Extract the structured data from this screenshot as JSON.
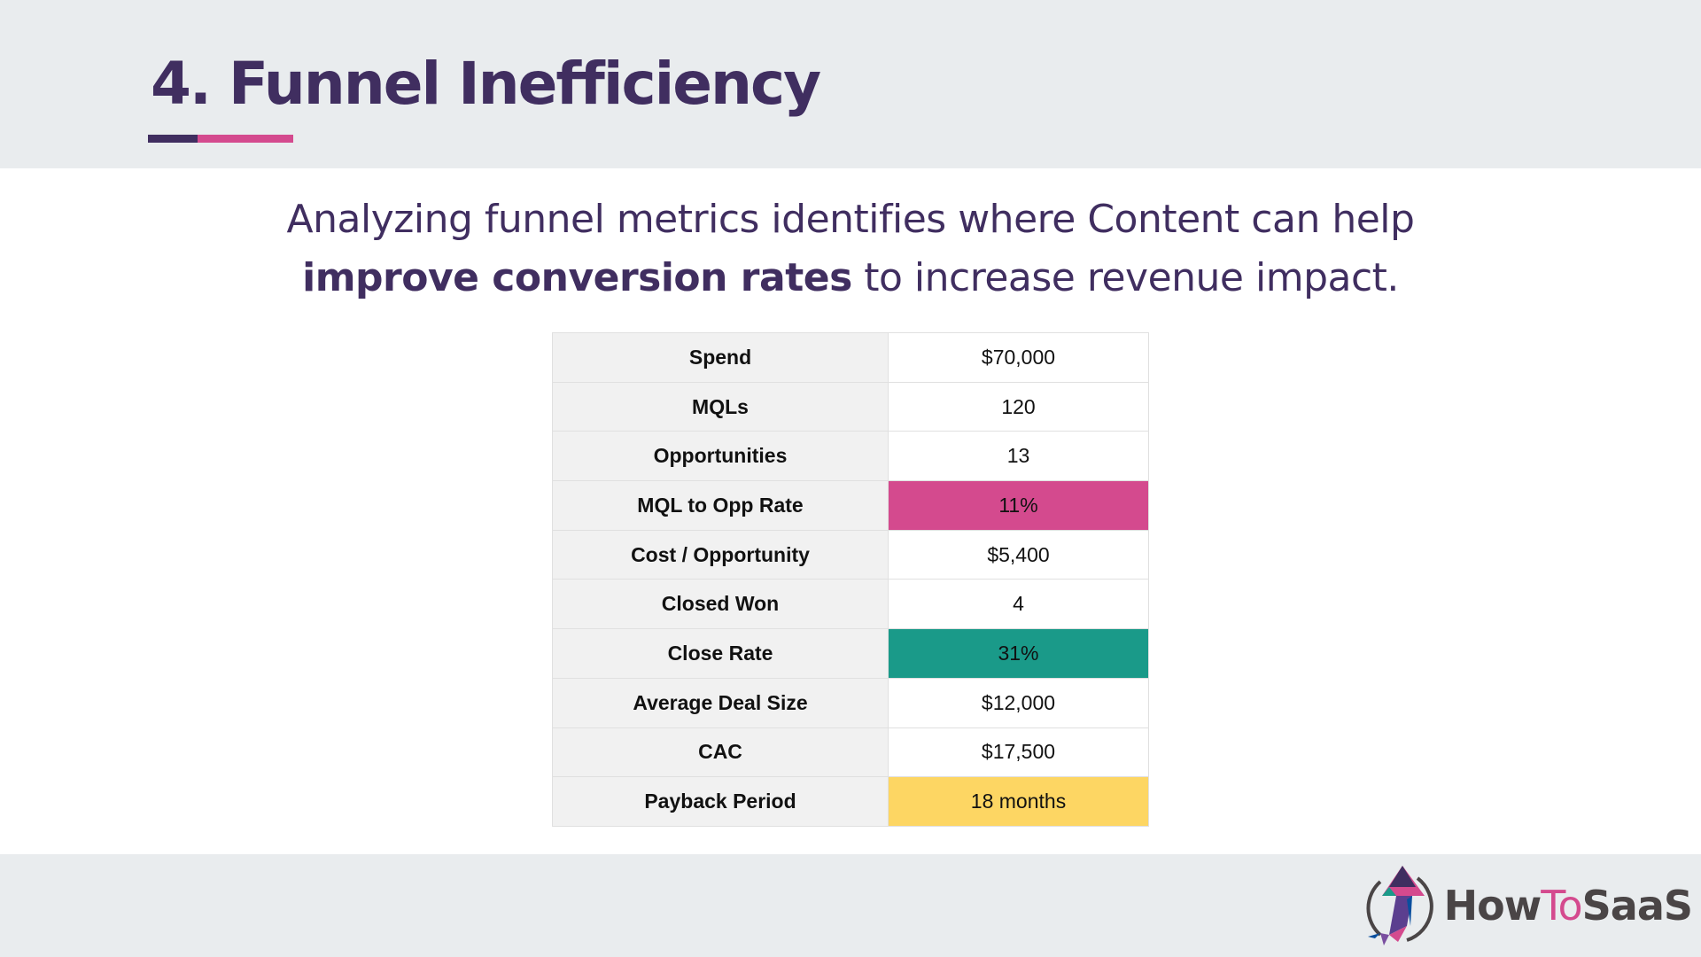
{
  "title": "4. Funnel Inefficiency",
  "subtitle": {
    "line1": "Analyzing funnel metrics identifies where Content can help",
    "bold": "improve conversion rates",
    "line2_rest": " to increase revenue impact."
  },
  "colors": {
    "purple": "#402e60",
    "pink": "#d44a8e",
    "teal": "#1a9a89",
    "yellow": "#fdd663"
  },
  "table": [
    {
      "label": "Spend",
      "value": "$70,000"
    },
    {
      "label": "MQLs",
      "value": "120"
    },
    {
      "label": "Opportunities",
      "value": "13"
    },
    {
      "label": "MQL to Opp Rate",
      "value": "11%",
      "highlight": "#d44a8e"
    },
    {
      "label": "Cost / Opportunity",
      "value": "$5,400"
    },
    {
      "label": "Closed Won",
      "value": "4"
    },
    {
      "label": "Close Rate",
      "value": "31%",
      "highlight": "#1a9a89"
    },
    {
      "label": "Average Deal Size",
      "value": "$12,000"
    },
    {
      "label": "CAC",
      "value": "$17,500"
    },
    {
      "label": "Payback Period",
      "value": "18 months",
      "highlight": "#fdd663"
    }
  ],
  "logo": {
    "how": "How",
    "to": "To",
    "saas": "SaaS"
  }
}
